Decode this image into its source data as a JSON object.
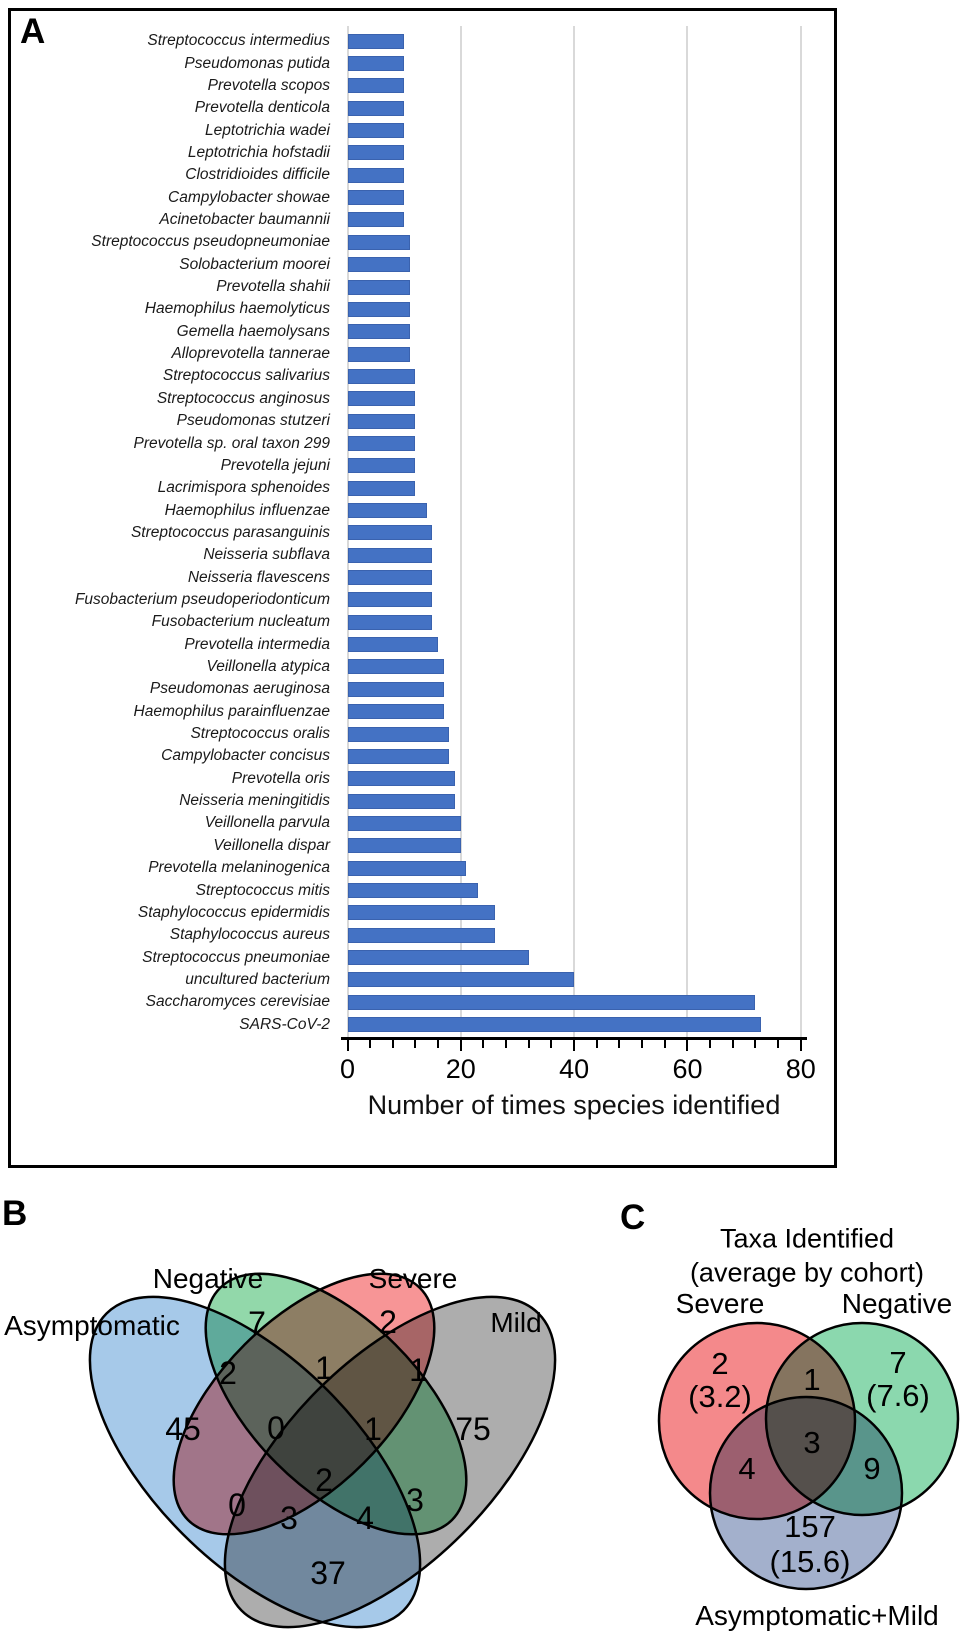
{
  "panels": {
    "a": {
      "label": "A"
    },
    "b": {
      "label": "B"
    },
    "c": {
      "label": "C"
    }
  },
  "chart_data": [
    {
      "panel": "A",
      "type": "bar",
      "orientation": "horizontal",
      "title": "",
      "xlabel": "Number of times species identified",
      "ylabel": "",
      "xlim": [
        0,
        80
      ],
      "xticks": [
        0,
        20,
        40,
        60,
        80
      ],
      "minor_tick_step": 4,
      "grid": true,
      "bar_color": "#4472C4",
      "bar_border_color": "#3A62AE",
      "gridline_color": "#D9D9D9",
      "categories": [
        "Streptococcus intermedius",
        "Pseudomonas putida",
        "Prevotella scopos",
        "Prevotella denticola",
        "Leptotrichia wadei",
        "Leptotrichia hofstadii",
        "Clostridioides difficile",
        "Campylobacter showae",
        "Acinetobacter baumannii",
        "Streptococcus pseudopneumoniae",
        "Solobacterium moorei",
        "Prevotella shahii",
        "Haemophilus haemolyticus",
        "Gemella haemolysans",
        "Alloprevotella tannerae",
        "Streptococcus salivarius",
        "Streptococcus anginosus",
        "Pseudomonas stutzeri",
        "Prevotella sp. oral taxon 299",
        "Prevotella jejuni",
        "Lacrimispora sphenoides",
        "Haemophilus influenzae",
        "Streptococcus parasanguinis",
        "Neisseria subflava",
        "Neisseria flavescens",
        "Fusobacterium pseudoperiodonticum",
        "Fusobacterium nucleatum",
        "Prevotella intermedia",
        "Veillonella atypica",
        "Pseudomonas aeruginosa",
        "Haemophilus parainfluenzae",
        "Streptococcus oralis",
        "Campylobacter concisus",
        "Prevotella oris",
        "Neisseria meningitidis",
        "Veillonella parvula",
        "Veillonella dispar",
        "Prevotella melaninogenica",
        "Streptococcus mitis",
        "Staphylococcus epidermidis",
        "Staphylococcus aureus",
        "Streptococcus pneumoniae",
        "uncultured bacterium",
        "Saccharomyces cerevisiae",
        "SARS-CoV-2"
      ],
      "values": [
        10,
        10,
        10,
        10,
        10,
        10,
        10,
        10,
        10,
        11,
        11,
        11,
        11,
        11,
        11,
        12,
        12,
        12,
        12,
        12,
        12,
        14,
        15,
        15,
        15,
        15,
        15,
        16,
        17,
        17,
        17,
        18,
        18,
        19,
        19,
        20,
        20,
        21,
        23,
        26,
        26,
        32,
        40,
        72,
        73
      ]
    },
    {
      "panel": "B",
      "type": "venn4",
      "sets": [
        {
          "name": "Asymptomatic",
          "label_color": "#2E75B6",
          "fill": "#A6C9E9"
        },
        {
          "name": "Negative",
          "label_color": "#00B050",
          "fill": "#92D8AA"
        },
        {
          "name": "Severe",
          "label_color": "#FF0000",
          "fill": "#F79596"
        },
        {
          "name": "Mild",
          "label_color": "#000000",
          "fill": "#ADADAD"
        }
      ],
      "regions": {
        "asymptomatic": "45",
        "negative": "7",
        "severe": "2",
        "mild": "75",
        "asymptomatic_negative": "2",
        "negative_severe": "1",
        "severe_mild": "1",
        "asymptomatic_negative_severe": "0",
        "negative_severe_mild": "1",
        "asymptomatic_severe": "0",
        "asymptomatic_severe_mild": "3",
        "asymptomatic_negative_mild": "4",
        "negative_mild": "3",
        "asymptomatic_mild": "37",
        "all_four": "2"
      }
    },
    {
      "panel": "C",
      "type": "venn3",
      "title": "Taxa Identified",
      "subtitle": "(average by cohort)",
      "sets": [
        {
          "name": "Severe",
          "label_color": "#FF0000",
          "fill": "#F4898B"
        },
        {
          "name": "Negative",
          "label_color": "#00B050",
          "fill": "#8BD8AE"
        },
        {
          "name": "Asymptomatic+Mild",
          "label_color": "#595959",
          "fill": "#A3B0CC"
        }
      ],
      "regions": {
        "severe": "2",
        "severe_avg": "(3.2)",
        "negative": "7",
        "negative_avg": "(7.6)",
        "severe_negative": "1",
        "all_three": "3",
        "severe_am": "4",
        "negative_am": "9",
        "am": "157",
        "am_avg": "(15.6)"
      }
    }
  ]
}
